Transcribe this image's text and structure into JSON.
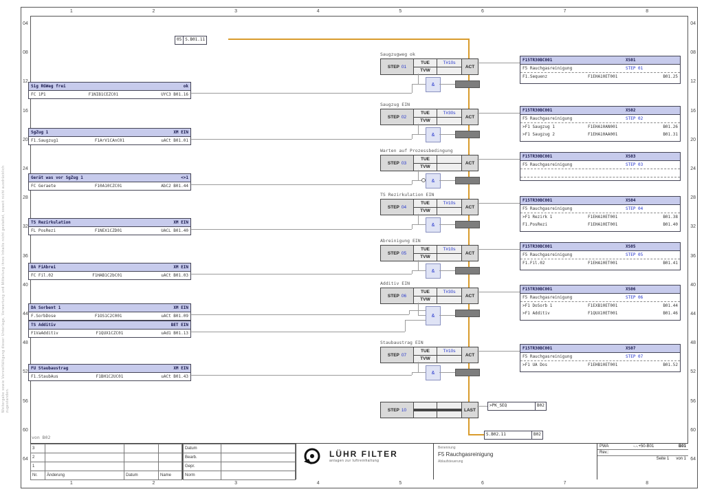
{
  "frame": {
    "columns": [
      "1",
      "2",
      "3",
      "4",
      "5",
      "6",
      "7",
      "8"
    ],
    "row_marks": [
      "04",
      "08",
      "12",
      "16",
      "20",
      "24",
      "28",
      "32",
      "36",
      "40",
      "44",
      "48",
      "52",
      "56",
      "60",
      "64"
    ],
    "side_note": "Weitergabe sowie Vervielfältigung dieser Unterlage, Verwertung und Mitteilung ihres Inhalts nicht gestattet, soweit nicht ausdrücklich zugestanden."
  },
  "start_ref": {
    "ref": "05",
    "label": "S.B01.11"
  },
  "from_note": "von B02",
  "groups": [
    {
      "label": "Saugzugweg ok",
      "step": "STEP",
      "no": "01",
      "tue": "TUE",
      "tvw": "TVW",
      "time": "T#10s",
      "act": "ACT"
    },
    {
      "label": "Saugzug EIN",
      "step": "STEP",
      "no": "02",
      "tue": "TUE",
      "tvw": "TVW",
      "time": "T#30s",
      "act": "ACT"
    },
    {
      "label": "Warten auf Prozessbedingung",
      "step": "STEP",
      "no": "03",
      "tue": "TUE",
      "tvw": "TVW",
      "time": "",
      "act": "ACT"
    },
    {
      "label": "TS Rezirkulation EIN",
      "step": "STEP",
      "no": "04",
      "tue": "TUE",
      "tvw": "TVW",
      "time": "T#10s",
      "act": "ACT"
    },
    {
      "label": "Abreinigung EIN",
      "step": "STEP",
      "no": "05",
      "tue": "TUE",
      "tvw": "TVW",
      "time": "T#10s",
      "act": "ACT"
    },
    {
      "label": "Additiv EIN",
      "step": "STEP",
      "no": "06",
      "tue": "TUE",
      "tvw": "TVW",
      "time": "T#30s",
      "act": "ACT"
    },
    {
      "label": "Staubaustrag EIN",
      "step": "STEP",
      "no": "07",
      "tue": "TUE",
      "tvw": "TVW",
      "time": "T#10s",
      "act": "ACT"
    }
  ],
  "conditions": [
    {
      "header": "Sig RGWeg frei",
      "state": "ok",
      "tag": "FC 1P1",
      "device": "F1NIB1CEZC01",
      "ref": "UYC3 B01.16"
    },
    {
      "header": "SgZug 1",
      "state": "XM EIN",
      "tag": "F1.Saugzug1",
      "device": "F1ArV1CAnC01",
      "ref": "uACt B01.01"
    },
    {
      "header": "Gerät was vor SgZug 1",
      "state": "<>1",
      "tag": "FC Geraete",
      "device": "F10A10CZC01",
      "ref": "AbC2 B01.44"
    },
    {
      "header": "TS Rezirkulation",
      "state": "XM EIN",
      "tag": "FL PosRezi",
      "device": "F1NEX1CZD01",
      "ref": "UACL B01.40"
    },
    {
      "header": "BA FiAbrei",
      "state": "XM EIN",
      "tag": "FC Fil.02",
      "device": "F1HAB1C2bC01",
      "ref": "uACt B01.03"
    },
    {
      "header": "DA Sorbent 1",
      "state": "XM EIN",
      "tag": "F.SorbDose",
      "device": "F1OS1C2C001",
      "ref": "uACt B01.09"
    },
    {
      "header": "TS Additiv",
      "state": "BET EIN",
      "tag": "F1VaAdditiv",
      "device": "F1QUX1CZC01",
      "ref": "uAd1 B01.13"
    },
    {
      "header": "FU Staubaustrag",
      "state": "XM EIN",
      "tag": "F1.StaubAus",
      "device": "F1BH1C2UC01",
      "ref": "uACt B01.43"
    }
  ],
  "actions": [
    {
      "device": "F15TR30BC001",
      "conn": "XS01",
      "plant": "F5 Rauchgasreinigung",
      "step": "STEP 01",
      "rows": [
        {
          "name": "F1.Sequenz",
          "dev": "F1EHA10ET001",
          "ref": "B01.25"
        }
      ]
    },
    {
      "device": "F15TR30BC001",
      "conn": "XS02",
      "plant": "F5 Rauchgasreinigung",
      "step": "STEP 02",
      "rows": [
        {
          "name": ">F1 Saugzug 1",
          "dev": "F1EHA10AN001",
          "ref": "B01.26"
        },
        {
          "name": ">F1 Saugzug 2",
          "dev": "F1EHA10AA001",
          "ref": "B01.31"
        }
      ]
    },
    {
      "device": "F15TR30BC001",
      "conn": "XS03",
      "plant": "F5 Rauchgasreinigung",
      "step": "STEP 03",
      "rows": []
    },
    {
      "device": "F15TR30BC001",
      "conn": "XS04",
      "plant": "F5 Rauchgasreinigung",
      "step": "STEP 04",
      "rows": [
        {
          "name": ">F1 Rezirk 1",
          "dev": "F1EHA10ET001",
          "ref": "B01.38"
        },
        {
          "name": "F1.PosRezi",
          "dev": "F1EHA10ET001",
          "ref": "B01.40"
        }
      ]
    },
    {
      "device": "F15TR30BC001",
      "conn": "XS05",
      "plant": "F5 Rauchgasreinigung",
      "step": "STEP 05",
      "rows": [
        {
          "name": "F1.Fil.02",
          "dev": "F1EHA10ET001",
          "ref": "B01.41"
        }
      ]
    },
    {
      "device": "F15TR30BC001",
      "conn": "XS06",
      "plant": "F5 Rauchgasreinigung",
      "step": "STEP 06",
      "rows": [
        {
          "name": ">F1 DoSorb 1",
          "dev": "F1EXB10ET001",
          "ref": "B01.44"
        },
        {
          "name": ">F1 Additiv",
          "dev": "F1QUX10ET001",
          "ref": "B01.46"
        }
      ]
    },
    {
      "device": "F15TR30BC001",
      "conn": "XS07",
      "plant": "F5 Rauchgasreinigung",
      "step": "STEP 07",
      "rows": [
        {
          "name": ">F1 UA Dos",
          "dev": "F1EHB10ET001",
          "ref": "B01.52"
        }
      ]
    }
  ],
  "last_step": {
    "step": "STEP",
    "no": "10",
    "act": "LAST"
  },
  "seq_ref": {
    "label": ">PK_SEQ",
    "page": "B02"
  },
  "end_ref": {
    "label": "S.B02.11",
    "page": "B02"
  },
  "titleblock": {
    "rev_rows": [
      "3",
      "2",
      "1"
    ],
    "rev_nr": "Nr.",
    "rev_cols": [
      "Änderung",
      "Datum",
      "Name"
    ],
    "sign_labels": [
      "Datum",
      "Bearb.",
      "Gepr.",
      "Norm"
    ],
    "company": "LÜHR FILTER",
    "company_tagline": "anlagen zur luftreinhaltung",
    "doc_label": "Benennung",
    "title": "F5 Rauchgasreinigung",
    "subtitle": "Ablaufsteuerung",
    "pwa_label": "PWA",
    "pwa_value": "-.-.+50-B01",
    "sheet_code": "B01",
    "rev_label": "Rev.:",
    "page_label": "Seite 1",
    "of_label": "von 1"
  }
}
